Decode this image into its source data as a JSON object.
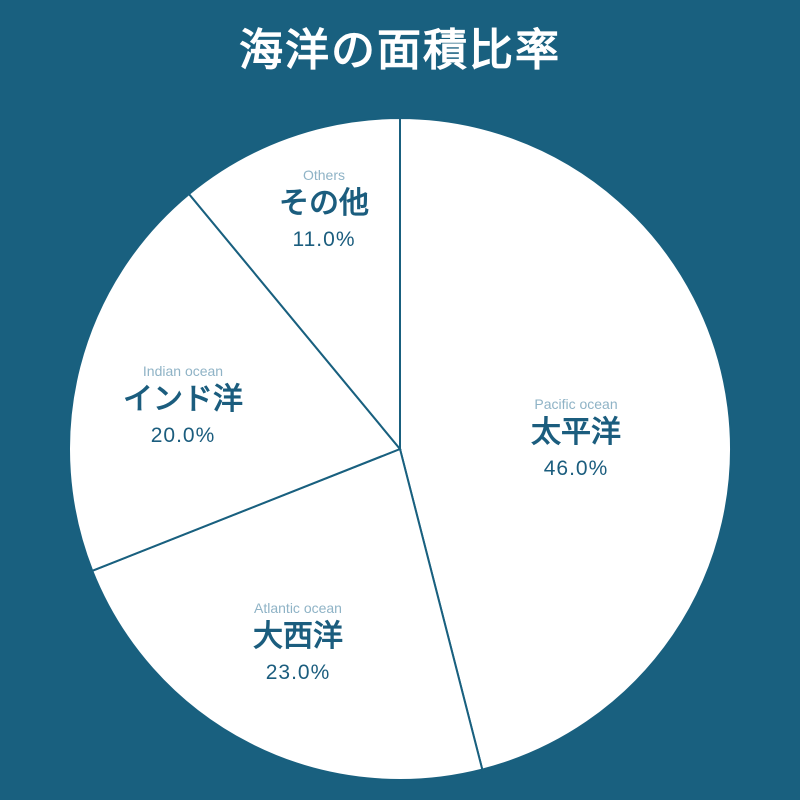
{
  "title": "海洋の面積比率",
  "colors": {
    "background": "#19607f",
    "slice_fill": "#ffffff",
    "slice_border": "#19607f",
    "label_en": "#8fb3c6",
    "label_jp": "#1b5d7e"
  },
  "slices": [
    {
      "en": "Pacific ocean",
      "jp": "太平洋",
      "pct": "46.0%"
    },
    {
      "en": "Atlantic ocean",
      "jp": "大西洋",
      "pct": "23.0%"
    },
    {
      "en": "Indian ocean",
      "jp": "インド洋",
      "pct": "20.0%"
    },
    {
      "en": "Others",
      "jp": "その他",
      "pct": "11.0%"
    }
  ],
  "chart_data": {
    "type": "pie",
    "title": "海洋の面積比率",
    "categories": [
      "太平洋 (Pacific ocean)",
      "大西洋 (Atlantic ocean)",
      "インド洋 (Indian ocean)",
      "その他 (Others)"
    ],
    "values": [
      46.0,
      23.0,
      20.0,
      11.0
    ],
    "unit": "%",
    "start_angle": "12 o'clock, clockwise",
    "legend": "none (labels inside slices)"
  }
}
